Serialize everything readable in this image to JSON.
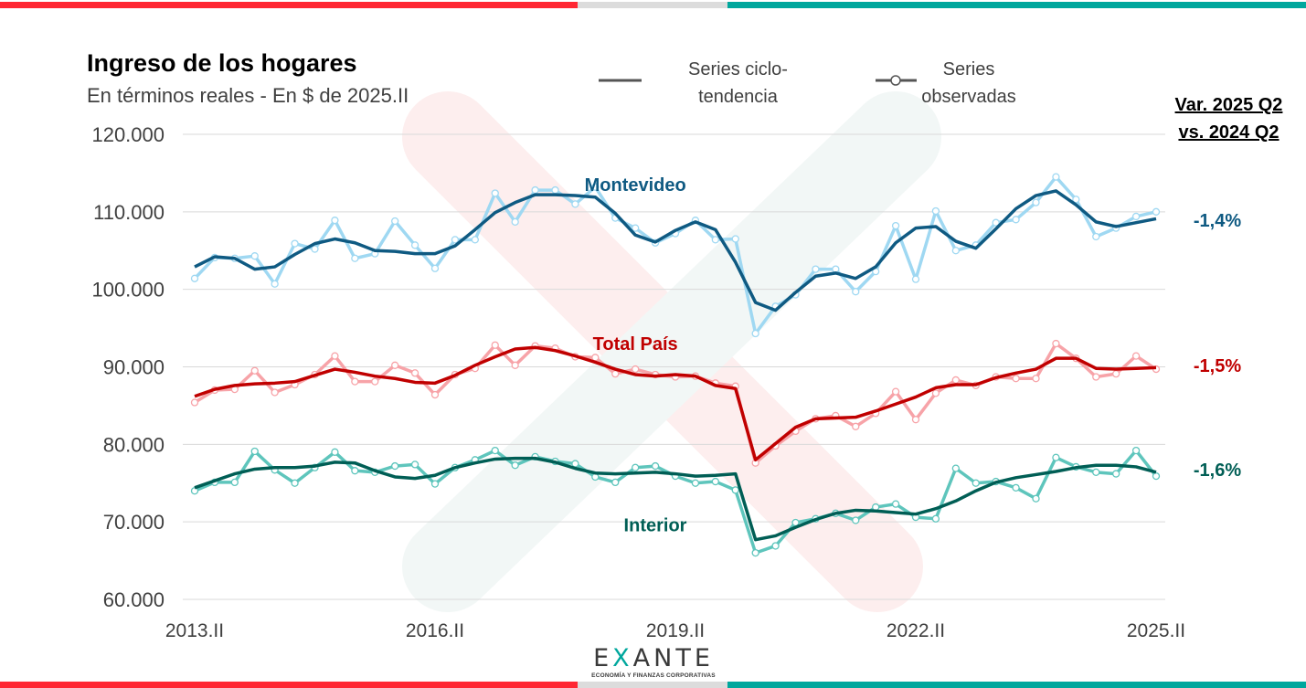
{
  "header": {
    "title": "Ingreso de los hogares",
    "subtitle": "En términos reales - En $ de 2025.II"
  },
  "legend": {
    "trend_label_1": "Series ciclo-",
    "trend_label_2": "tendencia",
    "observed_label_1": "Series",
    "observed_label_2": "observadas"
  },
  "variation_header": {
    "line1": "Var. 2025 Q2",
    "line2": "vs. 2024 Q2"
  },
  "brand": {
    "logo_pre": "E",
    "logo_x": "X",
    "logo_post": "ANTE",
    "tagline": "ECONOMÍA Y FINANZAS CORPORATIVAS",
    "colors": {
      "red": "#ff2733",
      "grey": "#dcdcdc",
      "teal": "#00a79d"
    }
  },
  "chart_data": {
    "type": "line",
    "title": "Ingreso de los hogares",
    "subtitle": "En términos reales - En $ de 2025.II",
    "xlabel": "",
    "ylabel": "",
    "ylim": [
      60000,
      120000
    ],
    "yticks": [
      120000,
      110000,
      100000,
      90000,
      80000,
      70000,
      60000
    ],
    "ytick_labels": [
      "120.000",
      "110.000",
      "100.000",
      "90.000",
      "80.000",
      "70.000",
      "60.000"
    ],
    "xtick_labels": [
      {
        "index": 0,
        "label": "2013.II"
      },
      {
        "index": 12,
        "label": "2016.II"
      },
      {
        "index": 24,
        "label": "2019.II"
      },
      {
        "index": 36,
        "label": "2022.II"
      },
      {
        "index": 48,
        "label": "2025.II"
      }
    ],
    "x_start": "2013.II",
    "x_end": "2025.II",
    "frequency": "quarterly",
    "grid": true,
    "legend": "top-center",
    "series": [
      {
        "name": "Montevideo",
        "label_color": "#0f5a82",
        "trend_color": "#0f5a82",
        "observed_color": "#9fd8f2",
        "variation": "-1,4%",
        "label_anchor_index": 22,
        "label_value": 113500,
        "observed": [
          101400,
          104100,
          104000,
          104300,
          100700,
          105900,
          105200,
          108900,
          104000,
          104600,
          108800,
          105700,
          102700,
          106400,
          106400,
          112400,
          108700,
          112800,
          112800,
          111000,
          113200,
          109200,
          107900,
          106000,
          107200,
          108900,
          106400,
          106500,
          94300,
          97800,
          99300,
          102600,
          102600,
          99700,
          102300,
          108200,
          101300,
          110100,
          105000,
          105700,
          108600,
          109000,
          111200,
          114500,
          111600,
          106800,
          107900,
          109400,
          110000
        ],
        "trend": [
          102900,
          104200,
          104000,
          102600,
          102900,
          104500,
          105900,
          106500,
          106000,
          105000,
          104900,
          104600,
          104600,
          105600,
          107700,
          109900,
          111200,
          112200,
          112200,
          112100,
          111900,
          109800,
          107000,
          106100,
          107600,
          108700,
          107700,
          103500,
          98300,
          97300,
          99600,
          101700,
          102100,
          101400,
          102900,
          106000,
          107900,
          108100,
          106200,
          105300,
          107800,
          110400,
          112100,
          112700,
          110900,
          108700,
          108100,
          108600,
          109100
        ]
      },
      {
        "name": "Total País",
        "label_color": "#c00000",
        "trend_color": "#c00000",
        "observed_color": "#f7a3a8",
        "variation": "-1,5%",
        "label_anchor_index": 22,
        "label_value": 93000,
        "observed": [
          85400,
          87000,
          87100,
          89500,
          86700,
          87700,
          89000,
          91400,
          88100,
          88100,
          90200,
          89200,
          86400,
          89000,
          89800,
          92800,
          90200,
          92700,
          92400,
          91300,
          91200,
          89100,
          89700,
          89000,
          88700,
          88800,
          87900,
          87500,
          77600,
          79800,
          81700,
          83300,
          83700,
          82300,
          84000,
          86800,
          83200,
          86600,
          88300,
          87600,
          88700,
          88500,
          88500,
          93000,
          91100,
          88700,
          89100,
          91400,
          89700
        ],
        "trend": [
          86200,
          87100,
          87600,
          87800,
          87900,
          88100,
          88900,
          89700,
          89300,
          88800,
          88500,
          88000,
          87900,
          88900,
          90200,
          91300,
          92300,
          92500,
          92100,
          91400,
          90600,
          89700,
          89000,
          88800,
          89000,
          88800,
          87600,
          87200,
          78000,
          80100,
          82200,
          83300,
          83400,
          83500,
          84300,
          85200,
          86100,
          87300,
          87700,
          87700,
          88600,
          89200,
          89700,
          91100,
          91100,
          89800,
          89700,
          89800,
          89900
        ]
      },
      {
        "name": "Interior",
        "label_color": "#005e55",
        "trend_color": "#005e55",
        "observed_color": "#5ec5bc",
        "variation": "-1,6%",
        "label_anchor_index": 24,
        "label_value": 69600,
        "observed": [
          74000,
          75100,
          75100,
          79100,
          76700,
          75000,
          77000,
          79000,
          76600,
          76400,
          77200,
          77400,
          74900,
          77000,
          78000,
          79200,
          77300,
          78400,
          77800,
          77500,
          75800,
          75100,
          77000,
          77200,
          75900,
          75000,
          75200,
          74100,
          66000,
          66900,
          69900,
          70400,
          71100,
          70200,
          71900,
          72300,
          70600,
          70400,
          76900,
          75000,
          75200,
          74400,
          73000,
          78300,
          77100,
          76400,
          76200,
          79200,
          75900
        ],
        "trend": [
          74400,
          75300,
          76200,
          76800,
          77000,
          77000,
          77200,
          77700,
          77600,
          76600,
          75800,
          75600,
          76000,
          77000,
          77600,
          78100,
          78200,
          78200,
          77700,
          76900,
          76300,
          76200,
          76300,
          76400,
          76200,
          75900,
          76000,
          76200,
          67700,
          68200,
          69300,
          70300,
          71100,
          71500,
          71400,
          71200,
          71000,
          71700,
          72700,
          74000,
          75100,
          75700,
          76100,
          76500,
          77000,
          77300,
          77300,
          77100,
          76400
        ]
      }
    ]
  }
}
